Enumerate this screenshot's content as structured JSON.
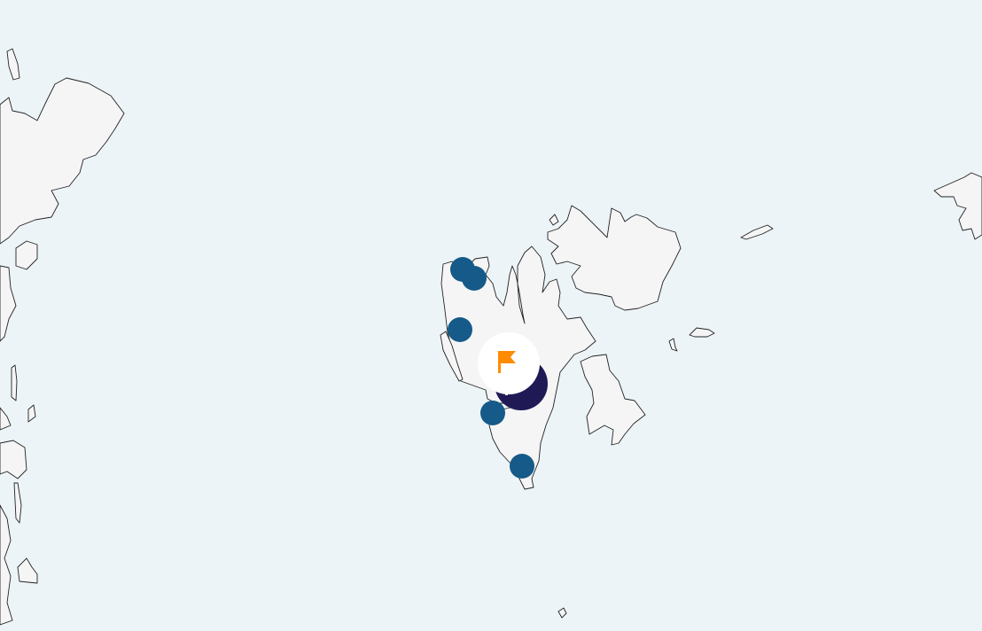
{
  "map": {
    "region": "Svalbard",
    "colors": {
      "water": "#ecf4f8",
      "land": "#f5f5f5",
      "coastline": "#222222",
      "marker": "#155a88",
      "selected_marker": "#1f1a55",
      "highlight_bg": "#ffffff",
      "highlight_icon": "#ff8c00"
    },
    "markers": [
      {
        "id": "m1",
        "type": "point"
      },
      {
        "id": "m2",
        "type": "point"
      },
      {
        "id": "m3",
        "type": "point"
      },
      {
        "id": "m4",
        "type": "point"
      },
      {
        "id": "m5",
        "type": "point"
      },
      {
        "id": "m6",
        "type": "selected",
        "icon": "flag-icon"
      },
      {
        "id": "m7",
        "type": "highlight",
        "icon": "flag-icon"
      }
    ]
  }
}
